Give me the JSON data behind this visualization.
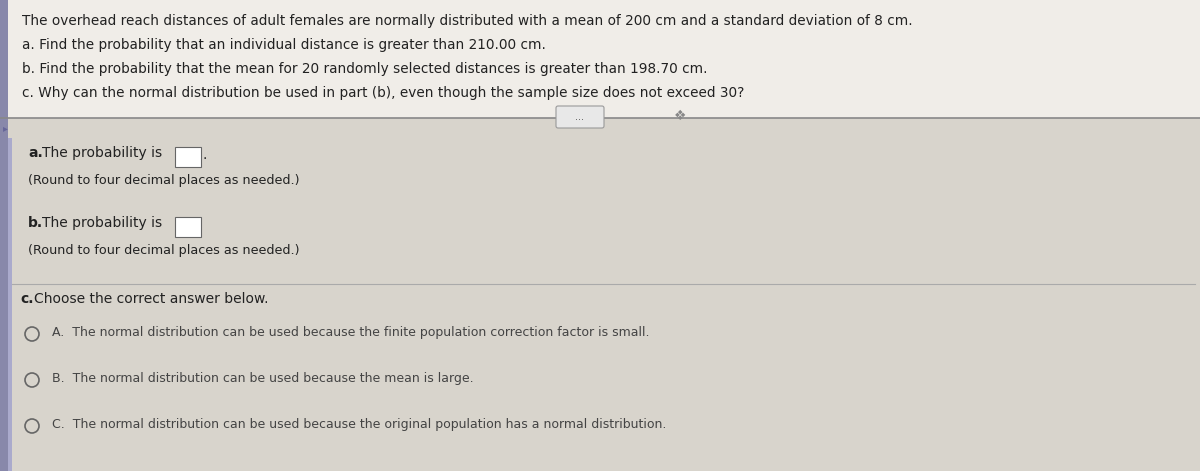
{
  "overall_bg": "#c8c4bc",
  "top_bg": "#f0ede8",
  "bottom_bg": "#d8d4cc",
  "left_border_color": "#8888aa",
  "left_border2_color": "#aaaacc",
  "title_lines": [
    "The overhead reach distances of adult females are normally distributed with a mean of 200 cm and a standard deviation of 8 cm.",
    "a. Find the probability that an individual distance is greater than 210.00 cm.",
    "b. Find the probability that the mean for 20 randomly selected distances is greater than 198.70 cm.",
    "c. Why can the normal distribution be used in part (b), even though the sample size does not exceed 30?"
  ],
  "title_bold_prefix": [
    "",
    "a.",
    "b.",
    "c."
  ],
  "part_a_label_normal": "a. The probability is",
  "part_a_note": "(Round to four decimal places as needed.)",
  "part_b_label_normal": "b. The probability is",
  "part_b_note": "(Round to four decimal places as needed.)",
  "part_c_label": "c. Choose the correct answer below.",
  "option_a": "A.  The normal distribution can be used because the finite population correction factor is small.",
  "option_b": "B.  The normal distribution can be used because the mean is large.",
  "option_c": "C.  The normal distribution can be used because the original population has a normal distribution.",
  "text_color": "#222222",
  "light_text_color": "#444444",
  "divider_color": "#aaaaaa",
  "divider_color2": "#888888",
  "answer_box_color": "#ffffff",
  "answer_box_border": "#666666"
}
